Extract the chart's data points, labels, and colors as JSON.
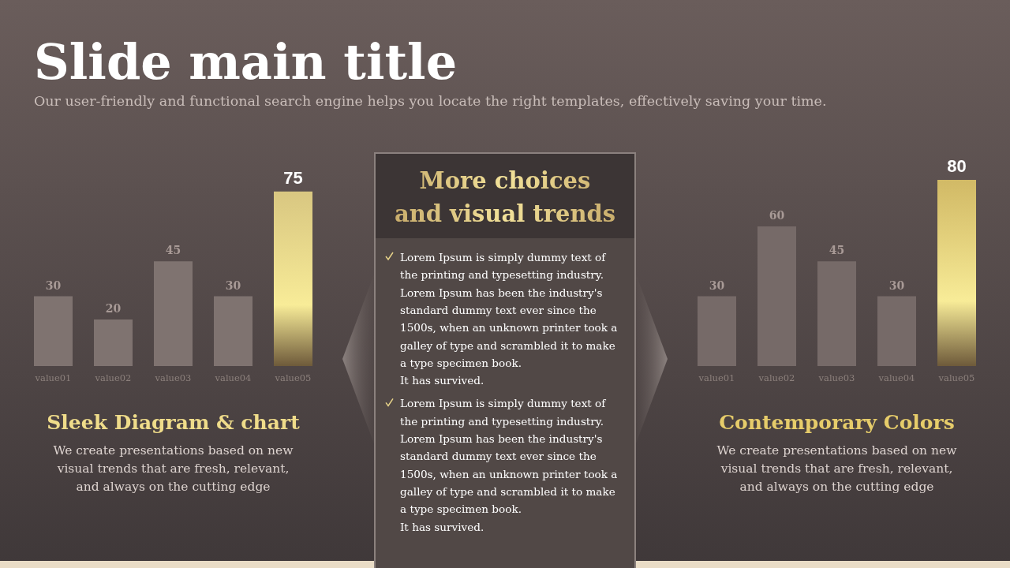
{
  "chart_data": [
    {
      "type": "other",
      "title": "Slide main title",
      "subtitle": "Our user-friendly and functional search engine helps you locate the right templates, effectively saving your time."
    },
    {
      "type": "bar",
      "title": "Sleek Diagram & chart",
      "categories": [
        "value01",
        "value02",
        "value03",
        "value04",
        "value05"
      ],
      "values": [
        30,
        20,
        45,
        30,
        75
      ],
      "colors": [
        "#7f7370",
        "#7f7370",
        "#7f7370",
        "#7f7370",
        "#efdc8a"
      ],
      "data_labels": true,
      "annotations": [
        "We create presentations based on new visual trends that are fresh, relevant, and always on the cutting edge"
      ]
    },
    {
      "type": "other",
      "title": "More choices\nand visual trends",
      "annotations": [
        "Lorem Ipsum is simply dummy text of the printing and typesetting industry. Lorem Ipsum has been the industry's standard dummy text ever since the 1500s, when an unknown printer took a galley of type and scrambled it to make a type specimen book.\nIt has survived.",
        "Lorem Ipsum is simply dummy text of the printing and typesetting industry. Lorem Ipsum has been the industry's standard dummy text ever since the 1500s, when an unknown printer took a galley of type and scrambled it to make a type specimen book.\nIt has survived."
      ]
    },
    {
      "type": "bar",
      "title": "Contemporary Colors",
      "categories": [
        "value01",
        "value02",
        "value03",
        "value04",
        "value05"
      ],
      "values": [
        30,
        60,
        45,
        30,
        80
      ],
      "colors": [
        "#766a68",
        "#766a68",
        "#766a68",
        "#766a68",
        "#e6cc6a"
      ],
      "data_labels": true,
      "annotations": [
        "We create presentations based on new visual trends that are fresh, relevant, and always on the cutting edge"
      ]
    }
  ]
}
